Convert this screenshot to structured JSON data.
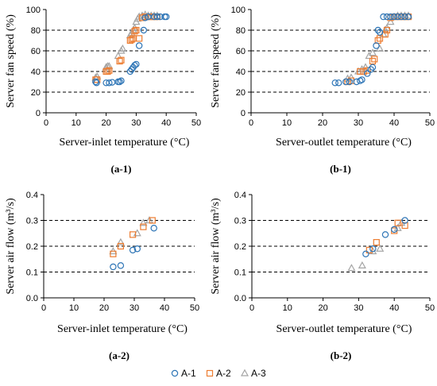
{
  "colors": {
    "A-1": "#2E75B6",
    "A-2": "#ED7D31",
    "A-3": "#A5A5A5"
  },
  "legend": [
    {
      "name": "A-1",
      "marker": "circle"
    },
    {
      "name": "A-2",
      "marker": "square"
    },
    {
      "name": "A-3",
      "marker": "triangle"
    }
  ],
  "chart_data": [
    {
      "id": "a-1",
      "type": "scatter",
      "caption": "(a-1)",
      "xlabel": "Server-inlet temperature (°C)",
      "ylabel": "Server fan speed (%)",
      "xlim": [
        0,
        50
      ],
      "xticks": [
        0,
        10,
        20,
        30,
        40,
        50
      ],
      "ylim": [
        0,
        100
      ],
      "yticks": [
        0,
        20,
        40,
        60,
        80,
        100
      ],
      "dashed_gridlines_y": [
        20,
        40,
        60,
        80
      ],
      "series": [
        {
          "name": "A-1",
          "points": [
            [
              16.5,
              30
            ],
            [
              16.8,
              29
            ],
            [
              20,
              29
            ],
            [
              21,
              29
            ],
            [
              22,
              29.5
            ],
            [
              24,
              30
            ],
            [
              24.5,
              30
            ],
            [
              25,
              31
            ],
            [
              28,
              40
            ],
            [
              28.5,
              42
            ],
            [
              29,
              44
            ],
            [
              29.5,
              46
            ],
            [
              30,
              47
            ],
            [
              31,
              65
            ],
            [
              32.5,
              80
            ],
            [
              33,
              92
            ],
            [
              34,
              93
            ],
            [
              36,
              93
            ],
            [
              37,
              93
            ],
            [
              38,
              93
            ],
            [
              39.5,
              93
            ],
            [
              40,
              93
            ]
          ]
        },
        {
          "name": "A-2",
          "points": [
            [
              16.5,
              32
            ],
            [
              17,
              32
            ],
            [
              20,
              40
            ],
            [
              20.5,
              40
            ],
            [
              21,
              41
            ],
            [
              24.5,
              50
            ],
            [
              25,
              51
            ],
            [
              28,
              70
            ],
            [
              28.5,
              71
            ],
            [
              29,
              72
            ],
            [
              29.5,
              79
            ],
            [
              30,
              80
            ],
            [
              31,
              72
            ],
            [
              32,
              92
            ],
            [
              33,
              93
            ],
            [
              34,
              93
            ],
            [
              35,
              93
            ],
            [
              36,
              93
            ],
            [
              37,
              93
            ]
          ]
        },
        {
          "name": "A-3",
          "points": [
            [
              16.5,
              34
            ],
            [
              17,
              35
            ],
            [
              20,
              44
            ],
            [
              20.5,
              45
            ],
            [
              21,
              45
            ],
            [
              24,
              55
            ],
            [
              25,
              60
            ],
            [
              25.5,
              62
            ],
            [
              28,
              75
            ],
            [
              28.5,
              77
            ],
            [
              29,
              80
            ],
            [
              29.5,
              82
            ],
            [
              30,
              88
            ],
            [
              30.5,
              91
            ],
            [
              31,
              93
            ],
            [
              32,
              94
            ],
            [
              33,
              95
            ],
            [
              34,
              94
            ],
            [
              35,
              94
            ],
            [
              36,
              94
            ],
            [
              37,
              94
            ]
          ]
        }
      ]
    },
    {
      "id": "b-1",
      "type": "scatter",
      "caption": "(b-1)",
      "xlabel": "Server-outlet temperature (°C)",
      "ylabel": "Server fan speed (%)",
      "xlim": [
        0,
        50
      ],
      "xticks": [
        0,
        10,
        20,
        30,
        40,
        50
      ],
      "ylim": [
        0,
        100
      ],
      "yticks": [
        0,
        20,
        40,
        60,
        80,
        100
      ],
      "dashed_gridlines_y": [
        20,
        40,
        60,
        80
      ],
      "series": [
        {
          "name": "A-1",
          "points": [
            [
              23.5,
              29
            ],
            [
              24.5,
              29
            ],
            [
              26.5,
              30
            ],
            [
              27.5,
              30
            ],
            [
              29.5,
              30
            ],
            [
              30.5,
              31
            ],
            [
              31,
              32
            ],
            [
              32.5,
              38
            ],
            [
              33.5,
              42
            ],
            [
              34,
              44
            ],
            [
              35,
              65
            ],
            [
              35.5,
              80
            ],
            [
              36,
              78
            ],
            [
              37,
              93
            ],
            [
              38,
              93
            ],
            [
              39,
              93
            ],
            [
              40,
              93
            ],
            [
              41,
              93
            ],
            [
              42,
              93
            ],
            [
              43,
              93
            ],
            [
              44,
              93
            ]
          ]
        },
        {
          "name": "A-2",
          "points": [
            [
              27,
              30
            ],
            [
              28,
              31
            ],
            [
              30.5,
              40
            ],
            [
              31.5,
              40
            ],
            [
              32.5,
              41
            ],
            [
              34,
              50
            ],
            [
              34.5,
              52
            ],
            [
              35.5,
              70
            ],
            [
              36,
              72
            ],
            [
              37.5,
              76
            ],
            [
              38,
              80
            ],
            [
              39,
              92
            ],
            [
              40,
              93
            ],
            [
              41,
              93
            ],
            [
              42,
              93
            ],
            [
              43,
              93
            ],
            [
              44,
              93
            ]
          ]
        },
        {
          "name": "A-3",
          "points": [
            [
              27,
              33
            ],
            [
              28,
              34
            ],
            [
              30,
              40
            ],
            [
              31,
              42
            ],
            [
              32,
              44
            ],
            [
              33,
              55
            ],
            [
              34,
              58
            ],
            [
              36,
              62
            ],
            [
              37,
              76
            ],
            [
              37.5,
              80
            ],
            [
              38,
              82
            ],
            [
              39,
              88
            ],
            [
              40,
              93
            ],
            [
              41,
              94
            ],
            [
              42,
              94
            ],
            [
              43,
              94
            ],
            [
              44,
              94
            ]
          ]
        }
      ]
    },
    {
      "id": "a-2",
      "type": "scatter",
      "caption": "(a-2)",
      "xlabel": "Server-inlet temperature (°C)",
      "ylabel": "Server air flow (m³/s)",
      "xlim": [
        0,
        50
      ],
      "xticks": [
        0,
        10,
        20,
        30,
        40,
        50
      ],
      "ylim": [
        0,
        0.4
      ],
      "yticks": [
        0,
        0.1,
        0.2,
        0.3,
        0.4
      ],
      "dashed_gridlines_y": [
        0.1,
        0.2,
        0.3
      ],
      "series": [
        {
          "name": "A-1",
          "points": [
            [
              23,
              0.12
            ],
            [
              25.5,
              0.125
            ],
            [
              29.5,
              0.185
            ],
            [
              31,
              0.19
            ],
            [
              36.5,
              0.27
            ]
          ]
        },
        {
          "name": "A-2",
          "points": [
            [
              23,
              0.17
            ],
            [
              25.5,
              0.2
            ],
            [
              29.5,
              0.245
            ],
            [
              33,
              0.275
            ],
            [
              36,
              0.3
            ]
          ]
        },
        {
          "name": "A-3",
          "points": [
            [
              23,
              0.18
            ],
            [
              25.5,
              0.215
            ],
            [
              31,
              0.25
            ],
            [
              33,
              0.29
            ],
            [
              35,
              0.3
            ]
          ]
        }
      ]
    },
    {
      "id": "b-2",
      "type": "scatter",
      "caption": "(b-2)",
      "xlabel": "Server-outlet temperature (°C)",
      "ylabel": "Server air flow (m³/s)",
      "xlim": [
        0,
        50
      ],
      "xticks": [
        0,
        10,
        20,
        30,
        40,
        50
      ],
      "ylim": [
        0,
        0.4
      ],
      "yticks": [
        0,
        0.1,
        0.2,
        0.3,
        0.4
      ],
      "dashed_gridlines_y": [
        0.1,
        0.2,
        0.3
      ],
      "series": [
        {
          "name": "A-1",
          "points": [
            [
              32,
              0.17
            ],
            [
              34,
              0.19
            ],
            [
              37.5,
              0.245
            ],
            [
              40,
              0.265
            ],
            [
              43,
              0.3
            ]
          ]
        },
        {
          "name": "A-2",
          "points": [
            [
              33,
              0.185
            ],
            [
              35,
              0.215
            ],
            [
              40,
              0.26
            ],
            [
              41,
              0.29
            ],
            [
              43,
              0.28
            ]
          ]
        },
        {
          "name": "A-3",
          "points": [
            [
              28,
              0.115
            ],
            [
              31,
              0.125
            ],
            [
              34,
              0.18
            ],
            [
              36,
              0.19
            ],
            [
              41,
              0.27
            ],
            [
              42,
              0.29
            ]
          ]
        }
      ]
    }
  ]
}
